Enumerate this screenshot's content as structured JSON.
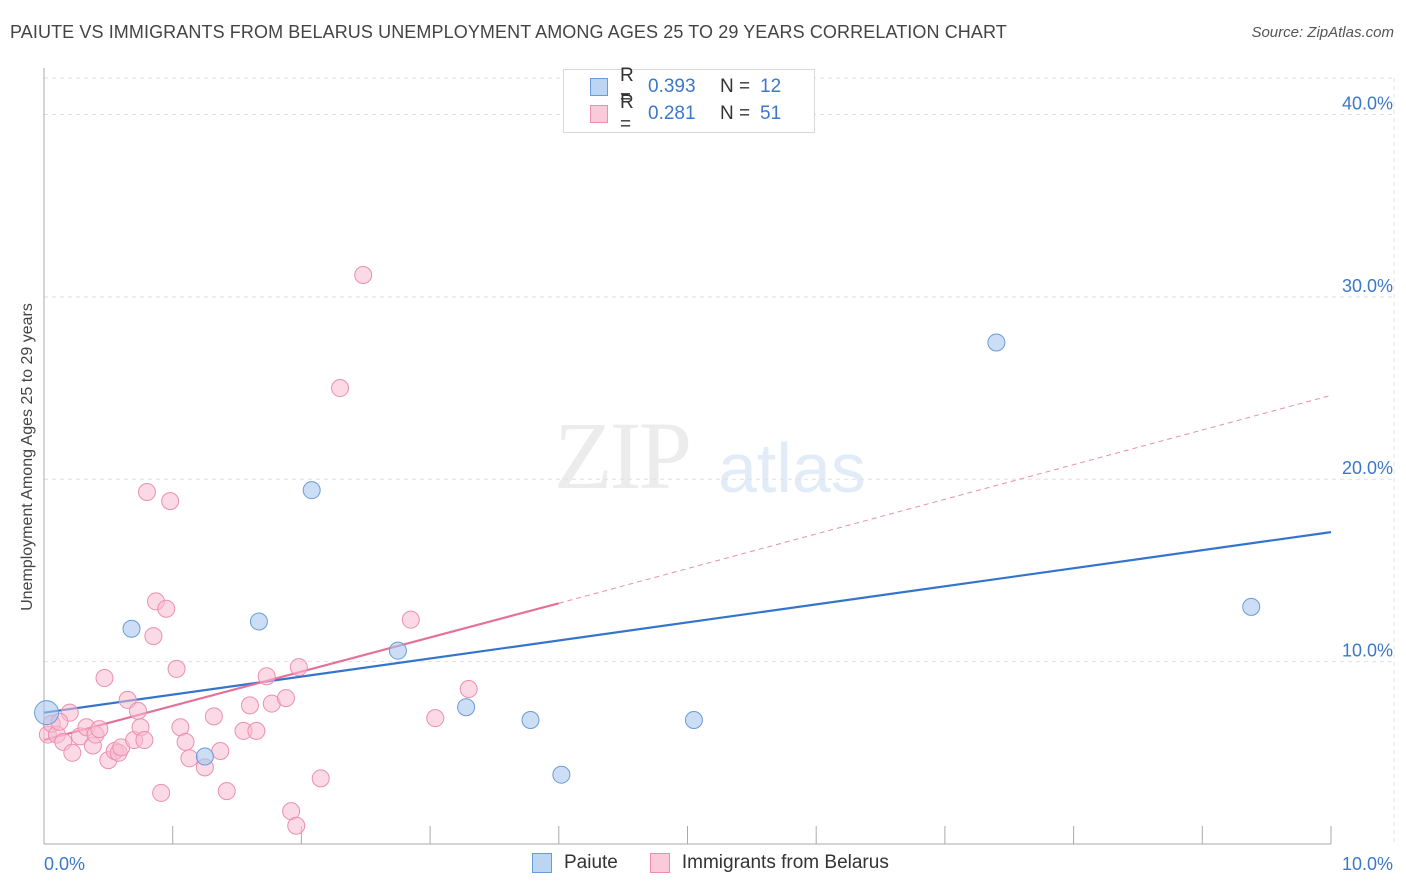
{
  "header": {
    "title": "PAIUTE VS IMMIGRANTS FROM BELARUS UNEMPLOYMENT AMONG AGES 25 TO 29 YEARS CORRELATION CHART",
    "source": "Source: ZipAtlas.com"
  },
  "watermark": {
    "zip": "ZIP",
    "atlas": "atlas"
  },
  "legend": {
    "rows": [
      {
        "r_label": "R =",
        "r_value": "0.393",
        "n_label": "N =",
        "n_value": "12"
      },
      {
        "r_label": "R =",
        "r_value": "0.281",
        "n_label": "N =",
        "n_value": "51"
      }
    ]
  },
  "bottom_legend": {
    "series1": "Paiute",
    "series2": "Immigrants from Belarus"
  },
  "colors": {
    "series1_fill": "#a9c8ee",
    "series1_stroke": "#6a9bd8",
    "series1_line": "#3474cc",
    "series2_fill": "#f7bcd0",
    "series2_stroke": "#ec8fae",
    "series2_line": "#e5709a",
    "grid": "#e0e0e0",
    "tick_text": "#3b78c9"
  },
  "chart_data": {
    "type": "scatter",
    "title": "PAIUTE VS IMMIGRANTS FROM BELARUS UNEMPLOYMENT AMONG AGES 25 TO 29 YEARS CORRELATION CHART",
    "xlabel": "",
    "ylabel": "Unemployment Among Ages 25 to 29 years",
    "xlim": [
      0,
      10
    ],
    "ylim": [
      0,
      42
    ],
    "x_tick_labels": [
      "0.0%",
      "10.0%"
    ],
    "y_ticks": [
      10,
      20,
      30,
      40
    ],
    "y_tick_labels": [
      "10.0%",
      "20.0%",
      "30.0%",
      "40.0%"
    ],
    "series": [
      {
        "name": "Paiute",
        "r": 0.393,
        "n": 12,
        "points": [
          [
            0.02,
            7.2
          ],
          [
            0.68,
            11.8
          ],
          [
            1.25,
            4.8
          ],
          [
            1.67,
            12.2
          ],
          [
            2.08,
            19.4
          ],
          [
            2.75,
            10.6
          ],
          [
            3.28,
            7.5
          ],
          [
            3.78,
            6.8
          ],
          [
            4.02,
            3.8
          ],
          [
            5.05,
            6.8
          ],
          [
            7.4,
            27.5
          ],
          [
            9.38,
            13.0
          ]
        ],
        "trend": {
          "x": [
            0,
            10
          ],
          "y": [
            7.2,
            17.1
          ],
          "style": "solid"
        }
      },
      {
        "name": "Immigrants from Belarus",
        "r": 0.281,
        "n": 51,
        "points": [
          [
            0.03,
            6.0
          ],
          [
            0.06,
            6.6
          ],
          [
            0.1,
            6.0
          ],
          [
            0.15,
            5.6
          ],
          [
            0.2,
            7.2
          ],
          [
            0.22,
            5.0
          ],
          [
            0.28,
            5.9
          ],
          [
            0.33,
            6.4
          ],
          [
            0.38,
            5.4
          ],
          [
            0.4,
            6.0
          ],
          [
            0.43,
            6.3
          ],
          [
            0.47,
            9.1
          ],
          [
            0.5,
            4.6
          ],
          [
            0.55,
            5.1
          ],
          [
            0.58,
            5.0
          ],
          [
            0.6,
            5.3
          ],
          [
            0.65,
            7.9
          ],
          [
            0.7,
            5.7
          ],
          [
            0.73,
            7.3
          ],
          [
            0.75,
            6.4
          ],
          [
            0.78,
            5.7
          ],
          [
            0.8,
            19.3
          ],
          [
            0.85,
            11.4
          ],
          [
            0.87,
            13.3
          ],
          [
            0.91,
            2.8
          ],
          [
            0.95,
            12.9
          ],
          [
            0.98,
            18.8
          ],
          [
            1.03,
            9.6
          ],
          [
            1.06,
            6.4
          ],
          [
            1.1,
            5.6
          ],
          [
            1.13,
            4.7
          ],
          [
            1.25,
            4.2
          ],
          [
            1.32,
            7.0
          ],
          [
            1.37,
            5.1
          ],
          [
            1.42,
            2.9
          ],
          [
            1.55,
            6.2
          ],
          [
            1.6,
            7.6
          ],
          [
            1.65,
            6.2
          ],
          [
            1.73,
            9.2
          ],
          [
            1.77,
            7.7
          ],
          [
            1.88,
            8.0
          ],
          [
            1.92,
            1.8
          ],
          [
            1.96,
            1.0
          ],
          [
            1.98,
            9.7
          ],
          [
            2.15,
            3.6
          ],
          [
            2.3,
            25.0
          ],
          [
            2.48,
            31.2
          ],
          [
            2.85,
            12.3
          ],
          [
            3.04,
            6.9
          ],
          [
            3.3,
            8.5
          ],
          [
            0.12,
            6.7
          ]
        ],
        "trend": {
          "x": [
            0,
            4.0
          ],
          "y": [
            5.7,
            13.2
          ],
          "style": "solid"
        },
        "trend_extension": {
          "x": [
            4.0,
            10
          ],
          "y": [
            13.2,
            24.6
          ],
          "style": "dashed"
        }
      }
    ]
  }
}
